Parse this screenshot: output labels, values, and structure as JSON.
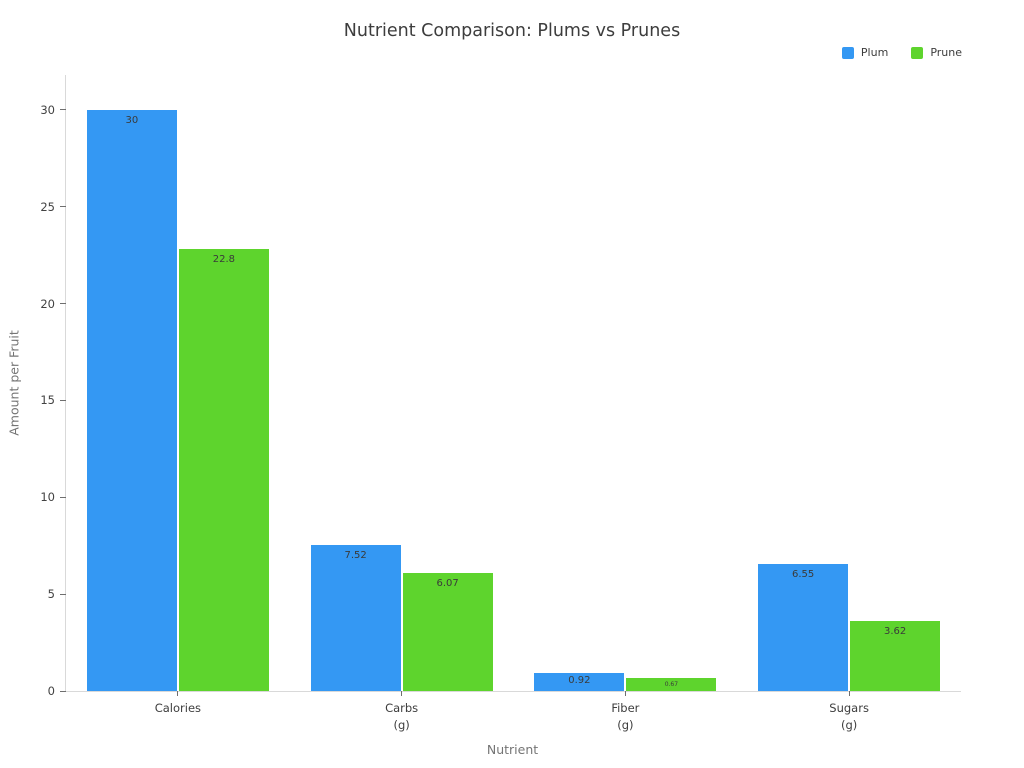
{
  "title": "Nutrient Comparison: Plums vs Prunes",
  "legend": {
    "items": [
      {
        "label": "Plum",
        "color": "#3498f3"
      },
      {
        "label": "Prune",
        "color": "#5ed42d"
      }
    ]
  },
  "axes": {
    "x_title": "Nutrient",
    "y_title": "Amount per Fruit"
  },
  "chart_data": {
    "type": "bar",
    "title": "Nutrient Comparison: Plums vs Prunes",
    "xlabel": "Nutrient",
    "ylabel": "Amount per Fruit",
    "categories": [
      "Calories",
      "Carbs (g)",
      "Fiber (g)",
      "Sugars (g)"
    ],
    "category_lines": [
      [
        "Calories"
      ],
      [
        "Carbs",
        "(g)"
      ],
      [
        "Fiber",
        "(g)"
      ],
      [
        "Sugars",
        "(g)"
      ]
    ],
    "series": [
      {
        "name": "Plum",
        "color": "#3498f3",
        "values": [
          30,
          7.52,
          0.92,
          6.55
        ],
        "labels": [
          "30",
          "7.52",
          "0.92",
          "6.55"
        ]
      },
      {
        "name": "Prune",
        "color": "#5ed42d",
        "values": [
          22.8,
          6.07,
          0.67,
          3.62
        ],
        "labels": [
          "22.8",
          "6.07",
          "0.67",
          "3.62"
        ]
      }
    ],
    "yticks": [
      0,
      5,
      10,
      15,
      20,
      25,
      30
    ],
    "ylim": [
      0,
      31.8
    ],
    "grid": false,
    "legend_position": "top-right",
    "bar_value_label_color": "#3a3a3a"
  }
}
